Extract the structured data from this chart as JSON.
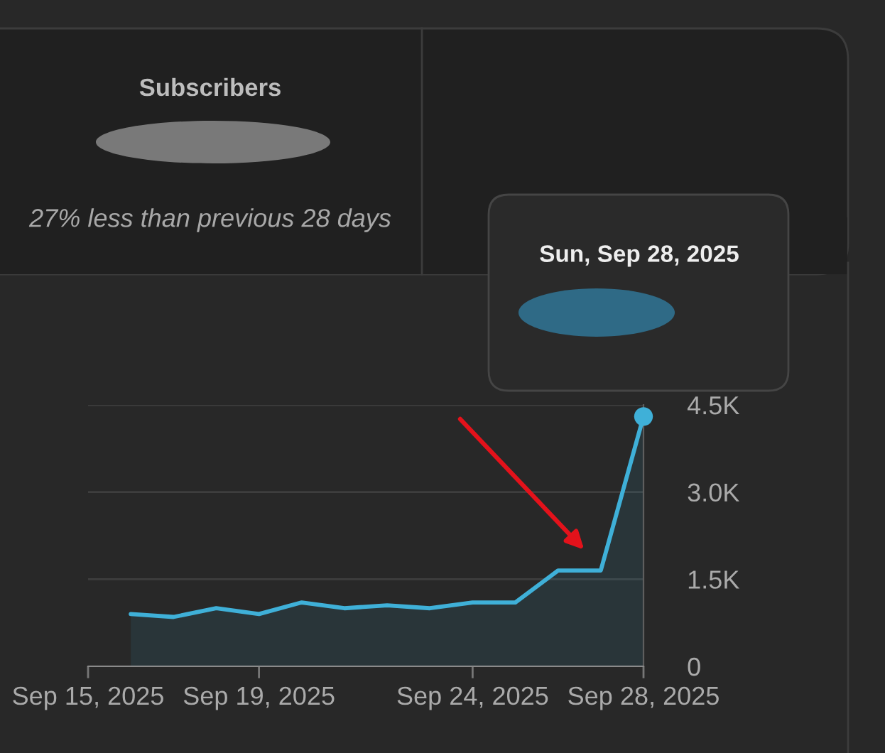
{
  "chart_data": {
    "type": "area",
    "title": "Subscribers",
    "subtitle": "27% less than previous 28 days",
    "x": [
      "2025-09-16",
      "2025-09-17",
      "2025-09-18",
      "2025-09-19",
      "2025-09-20",
      "2025-09-21",
      "2025-09-22",
      "2025-09-23",
      "2025-09-24",
      "2025-09-25",
      "2025-09-26",
      "2025-09-27",
      "2025-09-28"
    ],
    "series": [
      {
        "color": "#3fb0d8",
        "values": [
          900,
          850,
          1000,
          900,
          1100,
          1000,
          1050,
          1000,
          1100,
          1100,
          1650,
          1650,
          4300
        ]
      },
      {
        "type": "scatter",
        "color": "#3fb0d8",
        "x": [
          "2025-09-28"
        ],
        "values": [
          4300
        ]
      }
    ],
    "xlim": [
      "2025-09-15",
      "2025-09-28"
    ],
    "xticks": [
      {
        "value": "2025-09-15",
        "label": "Sep 15, 2025"
      },
      {
        "value": "2025-09-19",
        "label": "Sep 19, 2025"
      },
      {
        "value": "2025-09-24",
        "label": "Sep 24, 2025"
      },
      {
        "value": "2025-09-28",
        "label": "Sep 28, 2025"
      }
    ],
    "ylim": [
      0,
      4500
    ],
    "yticks": [
      0,
      {
        "value": 1500,
        "label": "1.5K"
      },
      {
        "value": 3000,
        "label": "3.0K"
      },
      {
        "value": 4500,
        "label": "4.5K"
      }
    ],
    "grid": "y",
    "annotations": [
      "Sun, Sep 28, 2025"
    ]
  }
}
